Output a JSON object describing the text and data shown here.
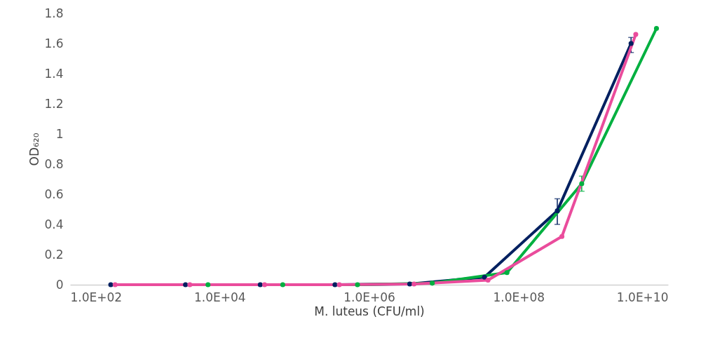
{
  "chart_data": {
    "type": "line",
    "xlabel": "M. luteus (CFU/ml)",
    "ylabel": "OD₆₂₀",
    "log": "x",
    "xlim": [
      100,
      10000000000
    ],
    "xticks": [
      {
        "value": 100,
        "label": "1.0E+02"
      },
      {
        "value": 10000,
        "label": "1.0E+04"
      },
      {
        "value": 1000000,
        "label": "1.0E+06"
      },
      {
        "value": 100000000,
        "label": "1.0E+08"
      },
      {
        "value": 10000000000,
        "label": "1.0E+10"
      }
    ],
    "ylim": [
      0,
      1.8
    ],
    "yticks": [
      0,
      0.2,
      0.4,
      0.6,
      0.8,
      1,
      1.2,
      1.4,
      1.6,
      1.8
    ],
    "grid": false,
    "legend": false,
    "marker": "circle",
    "line_style": "solid",
    "series": [
      {
        "color": "#002060",
        "x": [
          350,
          3500,
          35000,
          350000,
          3500000,
          35000000,
          330000000,
          3200000000
        ],
        "values": [
          0,
          0,
          0,
          0,
          0.005,
          0.05,
          0.49,
          1.6
        ],
        "errors": [
          null,
          null,
          null,
          null,
          null,
          null,
          [
            0.4,
            0.57
          ],
          [
            1.54,
            1.64
          ]
        ]
      },
      {
        "color": "#00b040",
        "x": [
          7000,
          70000,
          700000,
          7000000,
          70000000,
          700000000,
          7000000000
        ],
        "values": [
          0,
          0,
          0,
          0.01,
          0.08,
          0.67,
          1.7
        ],
        "errors": [
          null,
          null,
          null,
          null,
          null,
          [
            0.62,
            0.72
          ],
          null
        ]
      },
      {
        "color": "#ea4c9c",
        "x": [
          400,
          4000,
          40000,
          400000,
          4000000,
          39000000,
          380000000,
          3700000000
        ],
        "values": [
          0,
          0,
          0,
          0,
          0.005,
          0.03,
          0.32,
          1.66
        ]
      }
    ]
  }
}
